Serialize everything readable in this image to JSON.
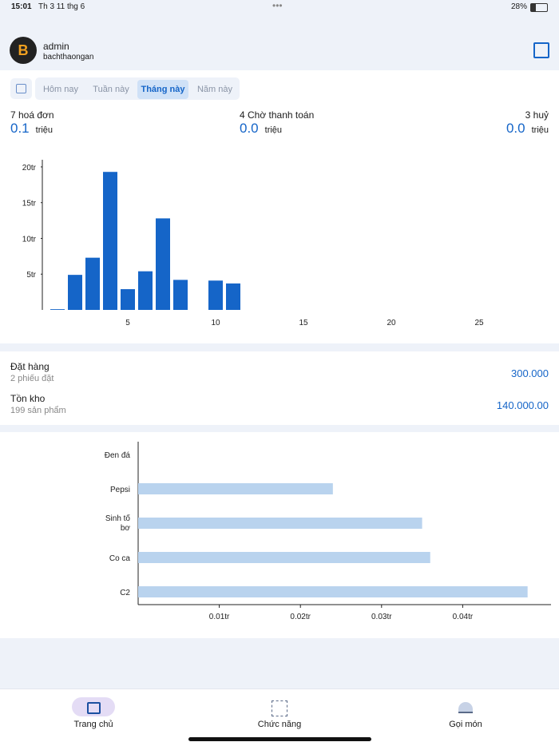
{
  "status_bar": {
    "time": "15:01",
    "date": "Th 3 11 thg 6",
    "battery": "28%"
  },
  "header": {
    "name": "admin",
    "username": "bachthaongan"
  },
  "tabs": {
    "items": [
      "Hôm nay",
      "Tuần này",
      "Tháng này",
      "Năm này"
    ],
    "selected": 2
  },
  "stats": [
    {
      "label": "7 hoá đơn",
      "value": "0.1",
      "unit": "triệu"
    },
    {
      "label": "4 Chờ thanh toán",
      "value": "0.0",
      "unit": "triệu"
    },
    {
      "label": "3 huỷ",
      "value": "0.0",
      "unit": "triệu"
    }
  ],
  "chart_data": [
    {
      "type": "bar",
      "x": [
        1,
        2,
        3,
        4,
        5,
        6,
        7,
        8,
        9,
        10,
        11
      ],
      "values": [
        0.1,
        4.9,
        7.3,
        19.3,
        2.9,
        5.4,
        12.8,
        4.2,
        0,
        4.1,
        3.7
      ],
      "color": "#1565c8",
      "xlim": [
        0,
        28.5
      ],
      "xticks": [
        5,
        10,
        15,
        20,
        25
      ],
      "ylim": [
        0,
        21
      ],
      "yticks": [
        {
          "value": 5,
          "label": "5tr"
        },
        {
          "value": 10,
          "label": "10tr"
        },
        {
          "value": 15,
          "label": "15tr"
        },
        {
          "value": 20,
          "label": "20tr"
        }
      ]
    },
    {
      "type": "hbar",
      "categories": [
        "Đen đá",
        "Pepsi",
        "Sinh tố bơ",
        "Co ca",
        "C2"
      ],
      "values": [
        0,
        0.024,
        0.035,
        0.036,
        0.048
      ],
      "color": "#b9d3ee",
      "xlim": [
        0,
        0.05
      ],
      "xticks": [
        {
          "value": 0.01,
          "label": "0.01tr"
        },
        {
          "value": 0.02,
          "label": "0.02tr"
        },
        {
          "value": 0.03,
          "label": "0.03tr"
        },
        {
          "value": 0.04,
          "label": "0.04tr"
        }
      ]
    }
  ],
  "summary": [
    {
      "title": "Đặt hàng",
      "subtitle": "2 phiếu đặt",
      "value": "300.000"
    },
    {
      "title": "Tồn kho",
      "subtitle": "199 sản phẩm",
      "value": "140.000.00"
    }
  ],
  "bottom_nav": {
    "items": [
      "Trang chủ",
      "Chức năng",
      "Gọi món"
    ],
    "selected": 0
  }
}
